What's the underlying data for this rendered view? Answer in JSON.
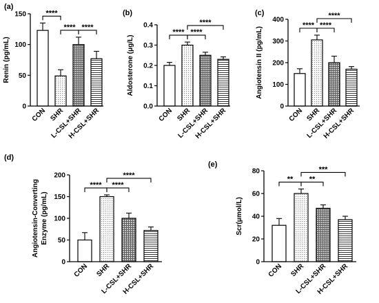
{
  "chart_data": [
    {
      "panel": "(a)",
      "type": "bar",
      "ylabel": "Renin (pg/mL)",
      "ylim": [
        0,
        150
      ],
      "yticks": [
        "0",
        "50",
        "100",
        "150"
      ],
      "categories": [
        "CON",
        "SHR",
        "L-CSL+SHR",
        "H-CSL+SHR"
      ],
      "values": [
        123,
        49,
        100,
        77
      ],
      "errors": [
        12,
        10,
        12,
        12
      ],
      "significance": [
        {
          "from": 0,
          "to": 1,
          "label": "****"
        },
        {
          "from": 1,
          "to": 2,
          "label": "****"
        },
        {
          "from": 2,
          "to": 3,
          "label": "****"
        }
      ]
    },
    {
      "panel": "(b)",
      "type": "bar",
      "ylabel": "Aldosterone (μg/L)",
      "ylim": [
        0,
        0.4
      ],
      "yticks": [
        "0.0",
        "0.1",
        "0.2",
        "0.3",
        "0.4"
      ],
      "categories": [
        "CON",
        "SHR",
        "L-CSL+SHR",
        "H-CSL+SHR"
      ],
      "values": [
        0.2,
        0.3,
        0.25,
        0.23
      ],
      "errors": [
        0.015,
        0.015,
        0.015,
        0.012
      ],
      "significance": [
        {
          "from": 0,
          "to": 1,
          "label": "****"
        },
        {
          "from": 1,
          "to": 2,
          "label": "****"
        },
        {
          "from": 1,
          "to": 3,
          "label": "****"
        }
      ]
    },
    {
      "panel": "(c)",
      "type": "bar",
      "ylabel": "Angiotensin II (pg/mL)",
      "ylim": [
        0,
        400
      ],
      "yticks": [
        "0",
        "100",
        "200",
        "300",
        "400"
      ],
      "categories": [
        "CON",
        "SHR",
        "L-CSL+SHR",
        "H-CSL+SHR"
      ],
      "values": [
        150,
        305,
        200,
        170
      ],
      "errors": [
        22,
        22,
        30,
        12
      ],
      "significance": [
        {
          "from": 0,
          "to": 1,
          "label": "****"
        },
        {
          "from": 1,
          "to": 2,
          "label": "****"
        },
        {
          "from": 1,
          "to": 3,
          "label": "****"
        }
      ]
    },
    {
      "panel": "(d)",
      "type": "bar",
      "ylabel": "Angiotensin-Converting Enzyme (pg/mL)",
      "ylabel_lines": [
        "Angiotensin-Converting",
        "Enzyme (pg/mL)"
      ],
      "ylim": [
        0,
        200
      ],
      "yticks": [
        "0",
        "50",
        "100",
        "150",
        "200"
      ],
      "categories": [
        "CON",
        "SHR",
        "L-CSL+SHR",
        "H-CSL+SHR"
      ],
      "values": [
        50,
        150,
        100,
        72
      ],
      "errors": [
        17,
        4,
        12,
        8
      ],
      "significance": [
        {
          "from": 0,
          "to": 1,
          "label": "****"
        },
        {
          "from": 1,
          "to": 2,
          "label": "****"
        },
        {
          "from": 1,
          "to": 3,
          "label": "****"
        }
      ]
    },
    {
      "panel": "(e)",
      "type": "bar",
      "ylabel": "Scr(μmol/L)",
      "ylim": [
        0,
        80
      ],
      "yticks": [
        "0",
        "20",
        "40",
        "60",
        "80"
      ],
      "categories": [
        "CON",
        "SHR",
        "L-CSL+SHR",
        "H-CSL+SHR"
      ],
      "values": [
        32,
        60,
        47,
        37
      ],
      "errors": [
        6,
        4,
        3,
        3
      ],
      "significance": [
        {
          "from": 0,
          "to": 1,
          "label": "**"
        },
        {
          "from": 1,
          "to": 2,
          "label": "**"
        },
        {
          "from": 1,
          "to": 3,
          "label": "***"
        }
      ]
    }
  ]
}
